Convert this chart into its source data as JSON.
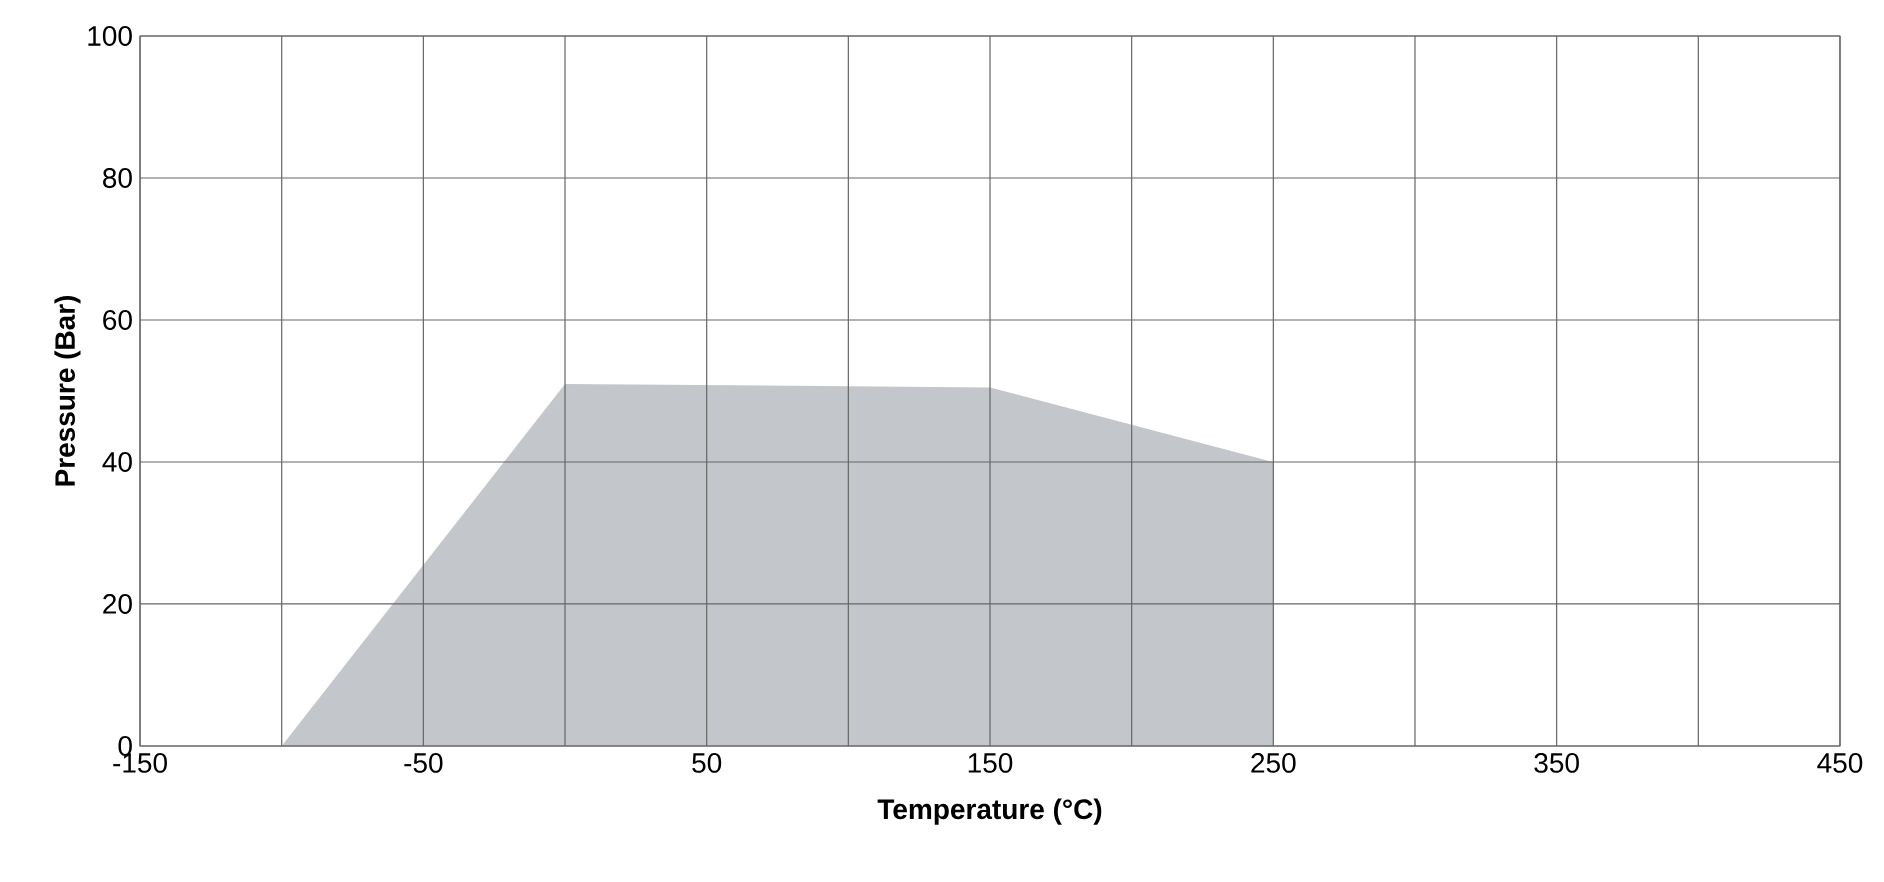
{
  "chart_data": {
    "type": "area",
    "xlabel": "Temperature (°C)",
    "ylabel": "Pressure (Bar)",
    "x": [
      -100,
      0,
      150,
      250
    ],
    "series": [
      {
        "color": "#c3c6cb",
        "values": [
          0,
          51,
          50.5,
          40
        ]
      }
    ],
    "xlim": [
      -150,
      450
    ],
    "xticks": [
      -150,
      {
        "value": -100,
        "label": null
      },
      -50,
      {
        "value": 0,
        "label": null
      },
      50,
      {
        "value": 100,
        "label": null
      },
      150,
      {
        "value": 200,
        "label": null
      },
      250,
      {
        "value": 300,
        "label": null
      },
      350,
      {
        "value": 400,
        "label": null
      },
      450
    ],
    "ylim": [
      0,
      100
    ],
    "yticks": [
      0,
      20,
      40,
      60,
      80,
      100
    ],
    "grid": true
  }
}
